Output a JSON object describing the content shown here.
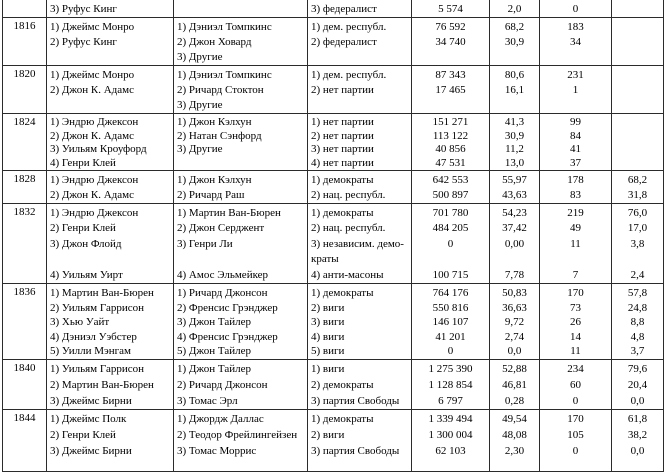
{
  "table": {
    "rows": [
      {
        "year": "",
        "candidates": [
          "3) Руфус Кинг"
        ],
        "vice_candidates": [],
        "parties": [
          "3) федералист"
        ],
        "popular_votes": [
          "5 574"
        ],
        "popular_vote_pct": [
          "2,0"
        ],
        "electoral_votes": [
          "0"
        ],
        "electoral_vote_pct": []
      },
      {
        "year": "1816",
        "candidates": [
          "1) Джеймс Монро",
          "2) Руфус Кинг"
        ],
        "vice_candidates": [
          "1) Дэниэл Томпкинс",
          "2) Джон Ховард",
          "3) Другие"
        ],
        "parties": [
          "1) дем. республ.",
          "2) федералист"
        ],
        "popular_votes": [
          "76 592",
          "34 740"
        ],
        "popular_vote_pct": [
          "68,2",
          "30,9"
        ],
        "electoral_votes": [
          "183",
          "34"
        ],
        "electoral_vote_pct": []
      },
      {
        "year": "1820",
        "candidates": [
          "1) Джеймс Монро",
          "2) Джон К. Адамс"
        ],
        "vice_candidates": [
          "1) Дэниэл Томпкинс",
          "2) Ричард Стоктон",
          "3) Другие"
        ],
        "parties": [
          "1) дем. республ.",
          "2) нет партии"
        ],
        "popular_votes": [
          "87 343",
          "17 465"
        ],
        "popular_vote_pct": [
          "80,6",
          "16,1"
        ],
        "electoral_votes": [
          "231",
          "1"
        ],
        "electoral_vote_pct": []
      },
      {
        "year": "1824",
        "candidates": [
          "1) Эндрю Джексон",
          "2) Джон К. Адамс",
          "3) Уильям Кроуфорд",
          "4) Генри Клей"
        ],
        "vice_candidates": [
          "1) Джон Кэлхун",
          "2) Натан Сэнфорд",
          "3) Другие"
        ],
        "parties": [
          "1) нет партии",
          "2) нет партии",
          "3) нет партии",
          "4) нет партии"
        ],
        "popular_votes": [
          "151 271",
          "113 122",
          "40 856",
          "47 531"
        ],
        "popular_vote_pct": [
          "41,3",
          "30,9",
          "11,2",
          "13,0"
        ],
        "electoral_votes": [
          "99",
          "84",
          "41",
          "37"
        ],
        "electoral_vote_pct": []
      },
      {
        "year": "1828",
        "candidates": [
          "1) Эндрю Джексон",
          "2) Джон К. Адамс"
        ],
        "vice_candidates": [
          "1) Джон Кэлхун",
          "2) Ричард Раш"
        ],
        "parties": [
          "1) демократы",
          "2) нац. республ."
        ],
        "popular_votes": [
          "642 553",
          "500 897"
        ],
        "popular_vote_pct": [
          "55,97",
          "43,63"
        ],
        "electoral_votes": [
          "178",
          "83"
        ],
        "electoral_vote_pct": [
          "68,2",
          "31,8"
        ]
      },
      {
        "year": "1832",
        "candidates": [
          "1) Эндрю Джексон",
          "2) Генри Клей",
          "3) Джон Флойд",
          "",
          "4) Уильям Уирт"
        ],
        "vice_candidates": [
          "1) Мартин Ван-Бюрен",
          "2) Джон Серджент",
          "3) Генри Ли",
          "",
          "4) Амос Эльмейкер"
        ],
        "parties": [
          "1) демократы",
          "2) нац. республ.",
          "3) независим. демо-",
          "краты",
          "4) анти-масоны"
        ],
        "popular_votes": [
          "701 780",
          "484 205",
          "0",
          "",
          "100 715"
        ],
        "popular_vote_pct": [
          "54,23",
          "37,42",
          "0,00",
          "",
          "7,78"
        ],
        "electoral_votes": [
          "219",
          "49",
          "11",
          "",
          "7"
        ],
        "electoral_vote_pct": [
          "76,0",
          "17,0",
          "3,8",
          "",
          "2,4"
        ]
      },
      {
        "year": "1836",
        "candidates": [
          "1) Мартин Ван-Бюрен",
          "2) Уильям Гаррисон",
          "3) Хью Уайт",
          "4) Дэниэл Уэбстер",
          "5) Уилли Мэнгам"
        ],
        "vice_candidates": [
          "1) Ричард Джонсон",
          "2) Френсис Грэнджер",
          "3) Джон Тайлер",
          "4) Френсис Грэнджер",
          "5) Джон Тайлер"
        ],
        "parties": [
          "1) демократы",
          "2) виги",
          "3) виги",
          "4) виги",
          "5) виги"
        ],
        "popular_votes": [
          "764 176",
          "550 816",
          "146 107",
          "41 201",
          "0"
        ],
        "popular_vote_pct": [
          "50,83",
          "36,63",
          "9,72",
          "2,74",
          "0,0"
        ],
        "electoral_votes": [
          "170",
          "73",
          "26",
          "14",
          "11"
        ],
        "electoral_vote_pct": [
          "57,8",
          "24,8",
          "8,8",
          "4,8",
          "3,7"
        ]
      },
      {
        "year": "1840",
        "candidates": [
          "1) Уильям Гаррисон",
          "2) Мартин Ван-Бюрен",
          "3) Джеймс Бирни"
        ],
        "vice_candidates": [
          "1) Джон Тайлер",
          "2) Ричард Джонсон",
          "3) Томас Эрл"
        ],
        "parties": [
          "1) виги",
          "2) демократы",
          "3) партия Свободы"
        ],
        "popular_votes": [
          "1 275 390",
          "1 128 854",
          "6 797"
        ],
        "popular_vote_pct": [
          "52,88",
          "46,81",
          "0,28"
        ],
        "electoral_votes": [
          "234",
          "60",
          "0"
        ],
        "electoral_vote_pct": [
          "79,6",
          "20,4",
          "0,0"
        ]
      },
      {
        "year": "1844",
        "candidates": [
          "1) Джеймс Полк",
          "2) Генри Клей",
          "3) Джеймс Бирни"
        ],
        "vice_candidates": [
          "1) Джордж Даллас",
          "2) Теодор Фрейлингейзен",
          "3) Томас Моррис"
        ],
        "parties": [
          "1) демократы",
          "2) виги",
          "3) партия Свободы"
        ],
        "popular_votes": [
          "1 339 494",
          "1 300 004",
          "62 103"
        ],
        "popular_vote_pct": [
          "49,54",
          "48,08",
          "2,30"
        ],
        "electoral_votes": [
          "170",
          "105",
          "0"
        ],
        "electoral_vote_pct": [
          "61,8",
          "38,2",
          "0,0"
        ]
      }
    ]
  }
}
